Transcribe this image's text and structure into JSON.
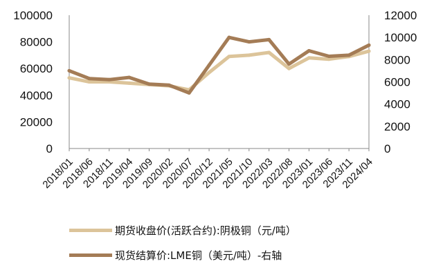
{
  "chart_data": {
    "type": "line",
    "x_labels": [
      "2018/01",
      "2018/06",
      "2018/11",
      "2019/04",
      "2019/09",
      "2020/02",
      "2020/07",
      "2020/12",
      "2021/05",
      "2021/10",
      "2022/03",
      "2022/08",
      "2023/01",
      "2023/06",
      "2023/11",
      "2024/04"
    ],
    "left_axis": {
      "ticks": [
        "0",
        "20000",
        "40000",
        "60000",
        "80000",
        "100000"
      ],
      "ylim": [
        0,
        100000
      ]
    },
    "right_axis": {
      "ticks": [
        "0",
        "2000",
        "4000",
        "6000",
        "8000",
        "10000",
        "12000"
      ],
      "ylim": [
        0,
        12000
      ]
    },
    "series": [
      {
        "name": "期货收盘价(活跃合约):阴极铜（元/吨）",
        "axis": "left",
        "color": "#dcc49a",
        "values": [
          53000,
          50000,
          50000,
          49000,
          48000,
          47000,
          44000,
          57000,
          69000,
          70000,
          72000,
          60000,
          68000,
          67000,
          69000,
          73000
        ]
      },
      {
        "name": "现货结算价:LME铜（美元/吨）-右轴",
        "axis": "right",
        "color": "#a47c56",
        "values": [
          7000,
          6300,
          6200,
          6400,
          5800,
          5700,
          5000,
          7500,
          10000,
          9600,
          9800,
          7600,
          8800,
          8300,
          8400,
          9300
        ]
      }
    ],
    "grid": false,
    "legend_position": "bottom"
  }
}
